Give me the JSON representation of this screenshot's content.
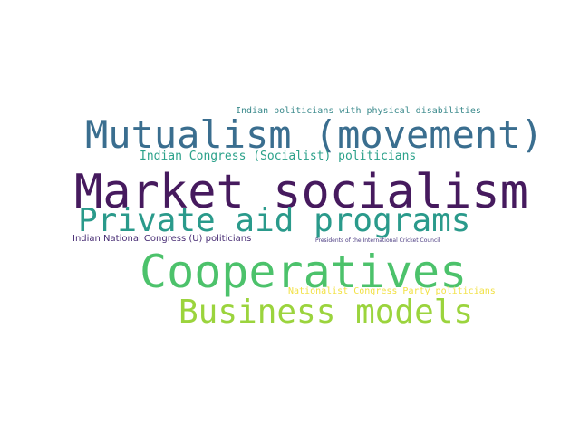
{
  "words": [
    {
      "text": "Indian politicians with physical disabilities",
      "color": "#3b8a8c"
    },
    {
      "text": "Mutualism (movement)",
      "color": "#3a6e8f"
    },
    {
      "text": "Indian Congress (Socialist) politicians",
      "color": "#2ba18a"
    },
    {
      "text": "Market socialism",
      "color": "#461a5e"
    },
    {
      "text": "Private aid programs",
      "color": "#2a9a8b"
    },
    {
      "text": "Indian National Congress (U) politicians",
      "color": "#482d74"
    },
    {
      "text": "Presidents of the International Cricket Council",
      "color": "#4a3a80"
    },
    {
      "text": "Cooperatives",
      "color": "#4cc26b"
    },
    {
      "text": "Nationalist Congress Party politicians",
      "color": "#f2e144"
    },
    {
      "text": "Business models",
      "color": "#9bd43d"
    }
  ]
}
